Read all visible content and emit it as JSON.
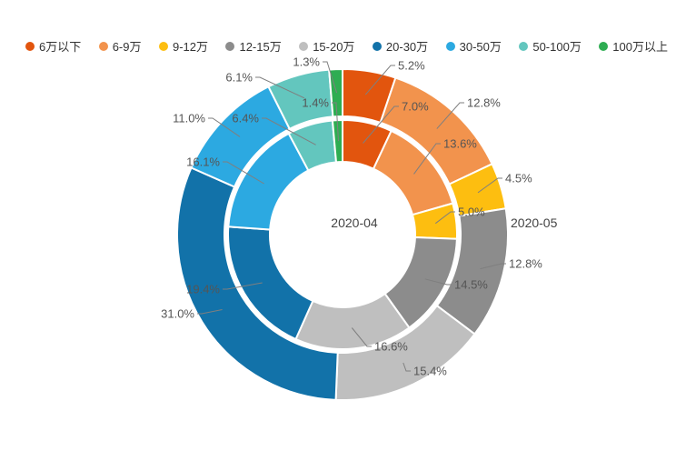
{
  "chart_data": {
    "type": "pie",
    "variant": "nested_donut",
    "legend_position": "top",
    "categories": [
      "6万以下",
      "6-9万",
      "9-12万",
      "12-15万",
      "15-20万",
      "20-30万",
      "30-50万",
      "50-100万",
      "100万以上"
    ],
    "colors": [
      "#E2550E",
      "#F2934D",
      "#FDBE10",
      "#8C8C8C",
      "#BFBFBF",
      "#1272A9",
      "#2CA9E1",
      "#63C6BE",
      "#2EAD52"
    ],
    "series": [
      {
        "name": "2020-04",
        "ring": "inner",
        "values": [
          7.0,
          13.6,
          5.0,
          14.5,
          16.6,
          19.4,
          16.1,
          6.4,
          1.4
        ]
      },
      {
        "name": "2020-05",
        "ring": "outer",
        "values": [
          5.2,
          12.8,
          4.5,
          12.8,
          15.4,
          31.0,
          11.0,
          6.1,
          1.3
        ]
      }
    ],
    "value_unit": "%",
    "label_format": "{value}%",
    "slice_border_color": "#ffffff",
    "label_text_color": "#555555",
    "leader_line_color": "#7f7f7f"
  }
}
